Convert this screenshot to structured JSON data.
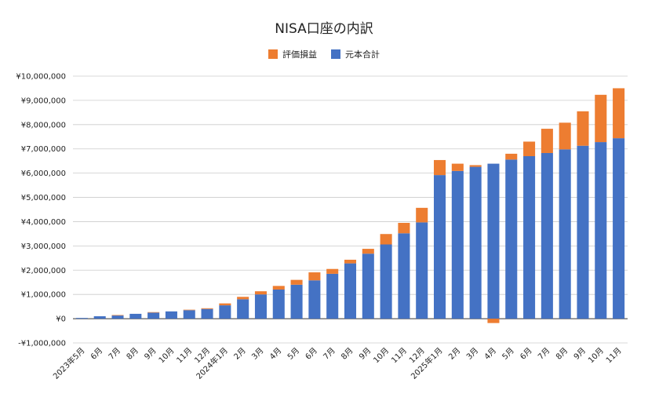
{
  "chart_data": {
    "type": "bar",
    "stacked": true,
    "title": "NISA口座の内訳",
    "xlabel": "",
    "ylabel": "",
    "ylim": [
      -1000000,
      10000000
    ],
    "y_ticks": [
      -1000000,
      0,
      1000000,
      2000000,
      3000000,
      4000000,
      5000000,
      6000000,
      7000000,
      8000000,
      9000000,
      10000000
    ],
    "y_tick_labels": [
      "-¥1,000,000",
      "¥0",
      "¥1,000,000",
      "¥2,000,000",
      "¥3,000,000",
      "¥4,000,000",
      "¥5,000,000",
      "¥6,000,000",
      "¥7,000,000",
      "¥8,000,000",
      "¥9,000,000",
      "¥10,000,000"
    ],
    "grid": true,
    "legend_position": "top",
    "categories": [
      "2023年5月",
      "6月",
      "7月",
      "8月",
      "9月",
      "10月",
      "11月",
      "12月",
      "2024年1月",
      "2月",
      "3月",
      "4月",
      "5月",
      "6月",
      "7月",
      "8月",
      "9月",
      "10月",
      "11月",
      "12月",
      "2025年1月",
      "2月",
      "3月",
      "4月",
      "5月",
      "6月",
      "7月",
      "8月",
      "9月",
      "10月",
      "11月"
    ],
    "series": [
      {
        "name": "元本合計",
        "color": "#4472C4",
        "values": [
          30000,
          100000,
          130000,
          200000,
          250000,
          300000,
          350000,
          400000,
          550000,
          800000,
          1000000,
          1200000,
          1400000,
          1580000,
          1850000,
          2280000,
          2680000,
          3060000,
          3520000,
          3970000,
          5920000,
          6090000,
          6260000,
          6390000,
          6560000,
          6700000,
          6830000,
          6980000,
          7130000,
          7280000,
          7440000
        ]
      },
      {
        "name": "評価損益",
        "color": "#ED7D31",
        "values": [
          0,
          0,
          20000,
          0,
          20000,
          0,
          20000,
          30000,
          80000,
          100000,
          130000,
          150000,
          200000,
          330000,
          200000,
          150000,
          200000,
          430000,
          430000,
          600000,
          620000,
          300000,
          70000,
          -180000,
          240000,
          600000,
          1000000,
          1100000,
          1420000,
          1950000,
          2060000
        ]
      }
    ]
  }
}
